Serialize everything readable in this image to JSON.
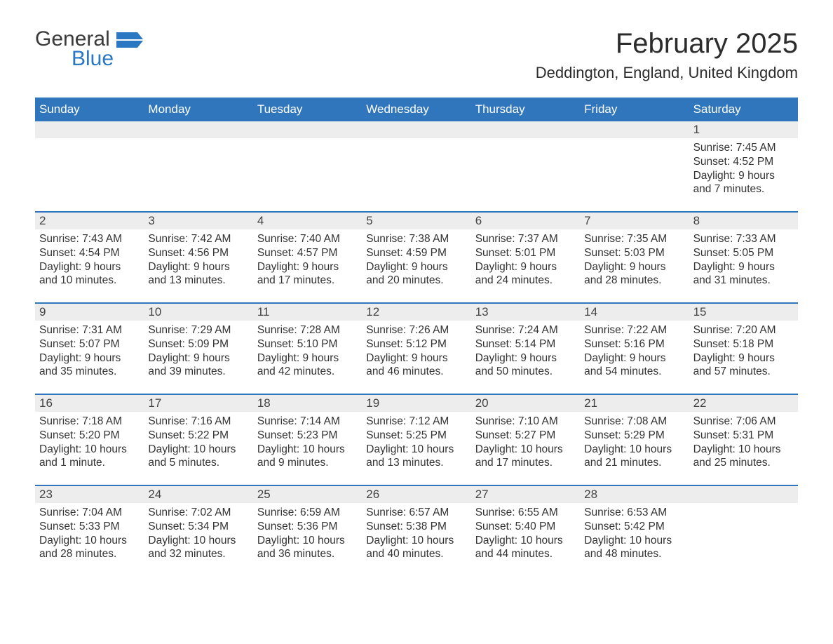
{
  "logo": {
    "text_general": "General",
    "text_blue": "Blue",
    "icon_color": "#2b78c2"
  },
  "title": {
    "month": "February 2025",
    "location": "Deddington, England, United Kingdom"
  },
  "colors": {
    "header_bg": "#3076bd",
    "header_text": "#ffffff",
    "band_bg": "#ededed",
    "rule": "#3076bd",
    "body_text": "#333333"
  },
  "weekdays": [
    "Sunday",
    "Monday",
    "Tuesday",
    "Wednesday",
    "Thursday",
    "Friday",
    "Saturday"
  ],
  "weeks": [
    [
      {
        "day": "",
        "sunrise": "",
        "sunset": "",
        "daylight": ""
      },
      {
        "day": "",
        "sunrise": "",
        "sunset": "",
        "daylight": ""
      },
      {
        "day": "",
        "sunrise": "",
        "sunset": "",
        "daylight": ""
      },
      {
        "day": "",
        "sunrise": "",
        "sunset": "",
        "daylight": ""
      },
      {
        "day": "",
        "sunrise": "",
        "sunset": "",
        "daylight": ""
      },
      {
        "day": "",
        "sunrise": "",
        "sunset": "",
        "daylight": ""
      },
      {
        "day": "1",
        "sunrise": "Sunrise: 7:45 AM",
        "sunset": "Sunset: 4:52 PM",
        "daylight": "Daylight: 9 hours and 7 minutes."
      }
    ],
    [
      {
        "day": "2",
        "sunrise": "Sunrise: 7:43 AM",
        "sunset": "Sunset: 4:54 PM",
        "daylight": "Daylight: 9 hours and 10 minutes."
      },
      {
        "day": "3",
        "sunrise": "Sunrise: 7:42 AM",
        "sunset": "Sunset: 4:56 PM",
        "daylight": "Daylight: 9 hours and 13 minutes."
      },
      {
        "day": "4",
        "sunrise": "Sunrise: 7:40 AM",
        "sunset": "Sunset: 4:57 PM",
        "daylight": "Daylight: 9 hours and 17 minutes."
      },
      {
        "day": "5",
        "sunrise": "Sunrise: 7:38 AM",
        "sunset": "Sunset: 4:59 PM",
        "daylight": "Daylight: 9 hours and 20 minutes."
      },
      {
        "day": "6",
        "sunrise": "Sunrise: 7:37 AM",
        "sunset": "Sunset: 5:01 PM",
        "daylight": "Daylight: 9 hours and 24 minutes."
      },
      {
        "day": "7",
        "sunrise": "Sunrise: 7:35 AM",
        "sunset": "Sunset: 5:03 PM",
        "daylight": "Daylight: 9 hours and 28 minutes."
      },
      {
        "day": "8",
        "sunrise": "Sunrise: 7:33 AM",
        "sunset": "Sunset: 5:05 PM",
        "daylight": "Daylight: 9 hours and 31 minutes."
      }
    ],
    [
      {
        "day": "9",
        "sunrise": "Sunrise: 7:31 AM",
        "sunset": "Sunset: 5:07 PM",
        "daylight": "Daylight: 9 hours and 35 minutes."
      },
      {
        "day": "10",
        "sunrise": "Sunrise: 7:29 AM",
        "sunset": "Sunset: 5:09 PM",
        "daylight": "Daylight: 9 hours and 39 minutes."
      },
      {
        "day": "11",
        "sunrise": "Sunrise: 7:28 AM",
        "sunset": "Sunset: 5:10 PM",
        "daylight": "Daylight: 9 hours and 42 minutes."
      },
      {
        "day": "12",
        "sunrise": "Sunrise: 7:26 AM",
        "sunset": "Sunset: 5:12 PM",
        "daylight": "Daylight: 9 hours and 46 minutes."
      },
      {
        "day": "13",
        "sunrise": "Sunrise: 7:24 AM",
        "sunset": "Sunset: 5:14 PM",
        "daylight": "Daylight: 9 hours and 50 minutes."
      },
      {
        "day": "14",
        "sunrise": "Sunrise: 7:22 AM",
        "sunset": "Sunset: 5:16 PM",
        "daylight": "Daylight: 9 hours and 54 minutes."
      },
      {
        "day": "15",
        "sunrise": "Sunrise: 7:20 AM",
        "sunset": "Sunset: 5:18 PM",
        "daylight": "Daylight: 9 hours and 57 minutes."
      }
    ],
    [
      {
        "day": "16",
        "sunrise": "Sunrise: 7:18 AM",
        "sunset": "Sunset: 5:20 PM",
        "daylight": "Daylight: 10 hours and 1 minute."
      },
      {
        "day": "17",
        "sunrise": "Sunrise: 7:16 AM",
        "sunset": "Sunset: 5:22 PM",
        "daylight": "Daylight: 10 hours and 5 minutes."
      },
      {
        "day": "18",
        "sunrise": "Sunrise: 7:14 AM",
        "sunset": "Sunset: 5:23 PM",
        "daylight": "Daylight: 10 hours and 9 minutes."
      },
      {
        "day": "19",
        "sunrise": "Sunrise: 7:12 AM",
        "sunset": "Sunset: 5:25 PM",
        "daylight": "Daylight: 10 hours and 13 minutes."
      },
      {
        "day": "20",
        "sunrise": "Sunrise: 7:10 AM",
        "sunset": "Sunset: 5:27 PM",
        "daylight": "Daylight: 10 hours and 17 minutes."
      },
      {
        "day": "21",
        "sunrise": "Sunrise: 7:08 AM",
        "sunset": "Sunset: 5:29 PM",
        "daylight": "Daylight: 10 hours and 21 minutes."
      },
      {
        "day": "22",
        "sunrise": "Sunrise: 7:06 AM",
        "sunset": "Sunset: 5:31 PM",
        "daylight": "Daylight: 10 hours and 25 minutes."
      }
    ],
    [
      {
        "day": "23",
        "sunrise": "Sunrise: 7:04 AM",
        "sunset": "Sunset: 5:33 PM",
        "daylight": "Daylight: 10 hours and 28 minutes."
      },
      {
        "day": "24",
        "sunrise": "Sunrise: 7:02 AM",
        "sunset": "Sunset: 5:34 PM",
        "daylight": "Daylight: 10 hours and 32 minutes."
      },
      {
        "day": "25",
        "sunrise": "Sunrise: 6:59 AM",
        "sunset": "Sunset: 5:36 PM",
        "daylight": "Daylight: 10 hours and 36 minutes."
      },
      {
        "day": "26",
        "sunrise": "Sunrise: 6:57 AM",
        "sunset": "Sunset: 5:38 PM",
        "daylight": "Daylight: 10 hours and 40 minutes."
      },
      {
        "day": "27",
        "sunrise": "Sunrise: 6:55 AM",
        "sunset": "Sunset: 5:40 PM",
        "daylight": "Daylight: 10 hours and 44 minutes."
      },
      {
        "day": "28",
        "sunrise": "Sunrise: 6:53 AM",
        "sunset": "Sunset: 5:42 PM",
        "daylight": "Daylight: 10 hours and 48 minutes."
      },
      {
        "day": "",
        "sunrise": "",
        "sunset": "",
        "daylight": ""
      }
    ]
  ]
}
